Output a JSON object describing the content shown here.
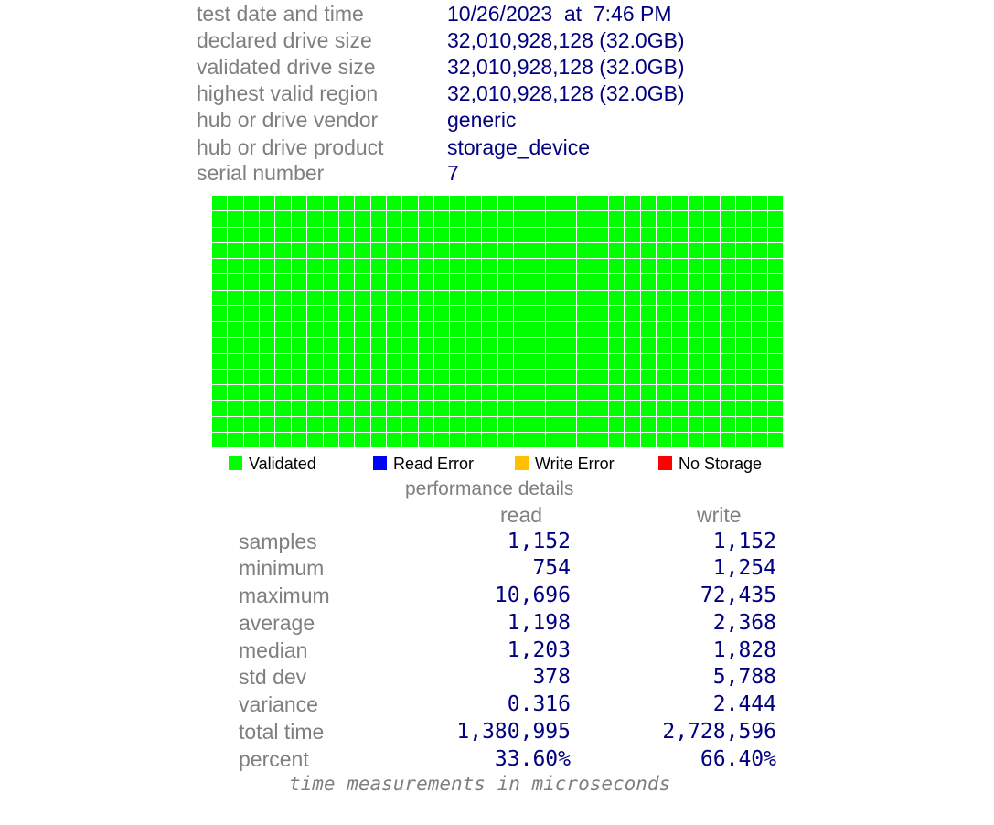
{
  "info": {
    "test_date": {
      "label": "test date and time",
      "value": "10/26/2023  at  7:46 PM"
    },
    "declared_size": {
      "label": "declared drive size",
      "value": "32,010,928,128 (32.0GB)"
    },
    "validated_size": {
      "label": "validated drive size",
      "value": "32,010,928,128 (32.0GB)"
    },
    "highest_valid": {
      "label": "highest valid region",
      "value": "32,010,928,128 (32.0GB)"
    },
    "vendor": {
      "label": "hub or drive vendor",
      "value": "generic"
    },
    "product": {
      "label": "hub or drive product",
      "value": "storage_device"
    },
    "serial": {
      "label": "serial number",
      "value": "7"
    }
  },
  "grid": {
    "columns": 36,
    "rows": 16,
    "cell_status": "validated",
    "colors": {
      "validated": "#00ff00",
      "read_error": "#0000ff",
      "write_error": "#ffc000",
      "no_storage": "#ff0000"
    }
  },
  "legend": {
    "validated": "Validated",
    "read_error": "Read Error",
    "write_error": "Write Error",
    "no_storage": "No Storage"
  },
  "performance": {
    "title": "performance details",
    "read_header": "read",
    "write_header": "write",
    "samples": {
      "label": "samples",
      "read": "1,152",
      "write": "1,152"
    },
    "minimum": {
      "label": "minimum",
      "read": "754",
      "write": "1,254"
    },
    "maximum": {
      "label": "maximum",
      "read": "10,696",
      "write": "72,435"
    },
    "average": {
      "label": "average",
      "read": "1,198",
      "write": "2,368"
    },
    "median": {
      "label": "median",
      "read": "1,203",
      "write": "1,828"
    },
    "std_dev": {
      "label": "std dev",
      "read": "378",
      "write": "5,788"
    },
    "variance": {
      "label": "variance",
      "read": "0.316",
      "write": "2.444"
    },
    "total_time": {
      "label": "total time",
      "read": "1,380,995",
      "write": "2,728,596"
    },
    "percent": {
      "label": "percent",
      "read": "33.60%",
      "write": "66.40%"
    },
    "footnote": "time measurements in microseconds"
  }
}
